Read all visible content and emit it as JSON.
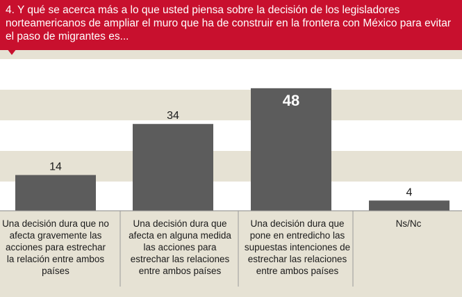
{
  "question": "4. Y qué se acerca más a lo que usted piensa sobre la decisión de los legisladores norteamericanos de ampliar el muro que ha de construir en la frontera con México para evitar el paso de migrantes es...",
  "colors": {
    "header": "#c8102e",
    "bar": "#5c5c5c",
    "band_light": "#ffffff",
    "band_dark": "#e6e2d4",
    "highlight_label": "#ffffff"
  },
  "chart_data": {
    "type": "bar",
    "title": "4. Y qué se acerca más a lo que usted piensa sobre la decisión de los legisladores norteamericanos de ampliar el muro que ha de construir en la frontera con México para evitar el paso de migrantes es...",
    "categories": [
      "Una decisión dura que no afecta gravemente las acciones para estrechar la relación entre ambos países",
      "Una decisión dura que afecta en alguna medida las acciones para estrechar las relaciones entre ambos países",
      "Una decisión dura que pone en entredicho las supuestas intenciones de estrechar las relaciones entre ambos países",
      "Ns/Nc"
    ],
    "values": [
      14,
      34,
      48,
      4
    ],
    "value_labels": [
      "14",
      "34",
      "48",
      "4"
    ],
    "highlighted_index": 2,
    "ylim": [
      0,
      50
    ],
    "grid": "alternating horizontal bands",
    "legend": "none"
  }
}
